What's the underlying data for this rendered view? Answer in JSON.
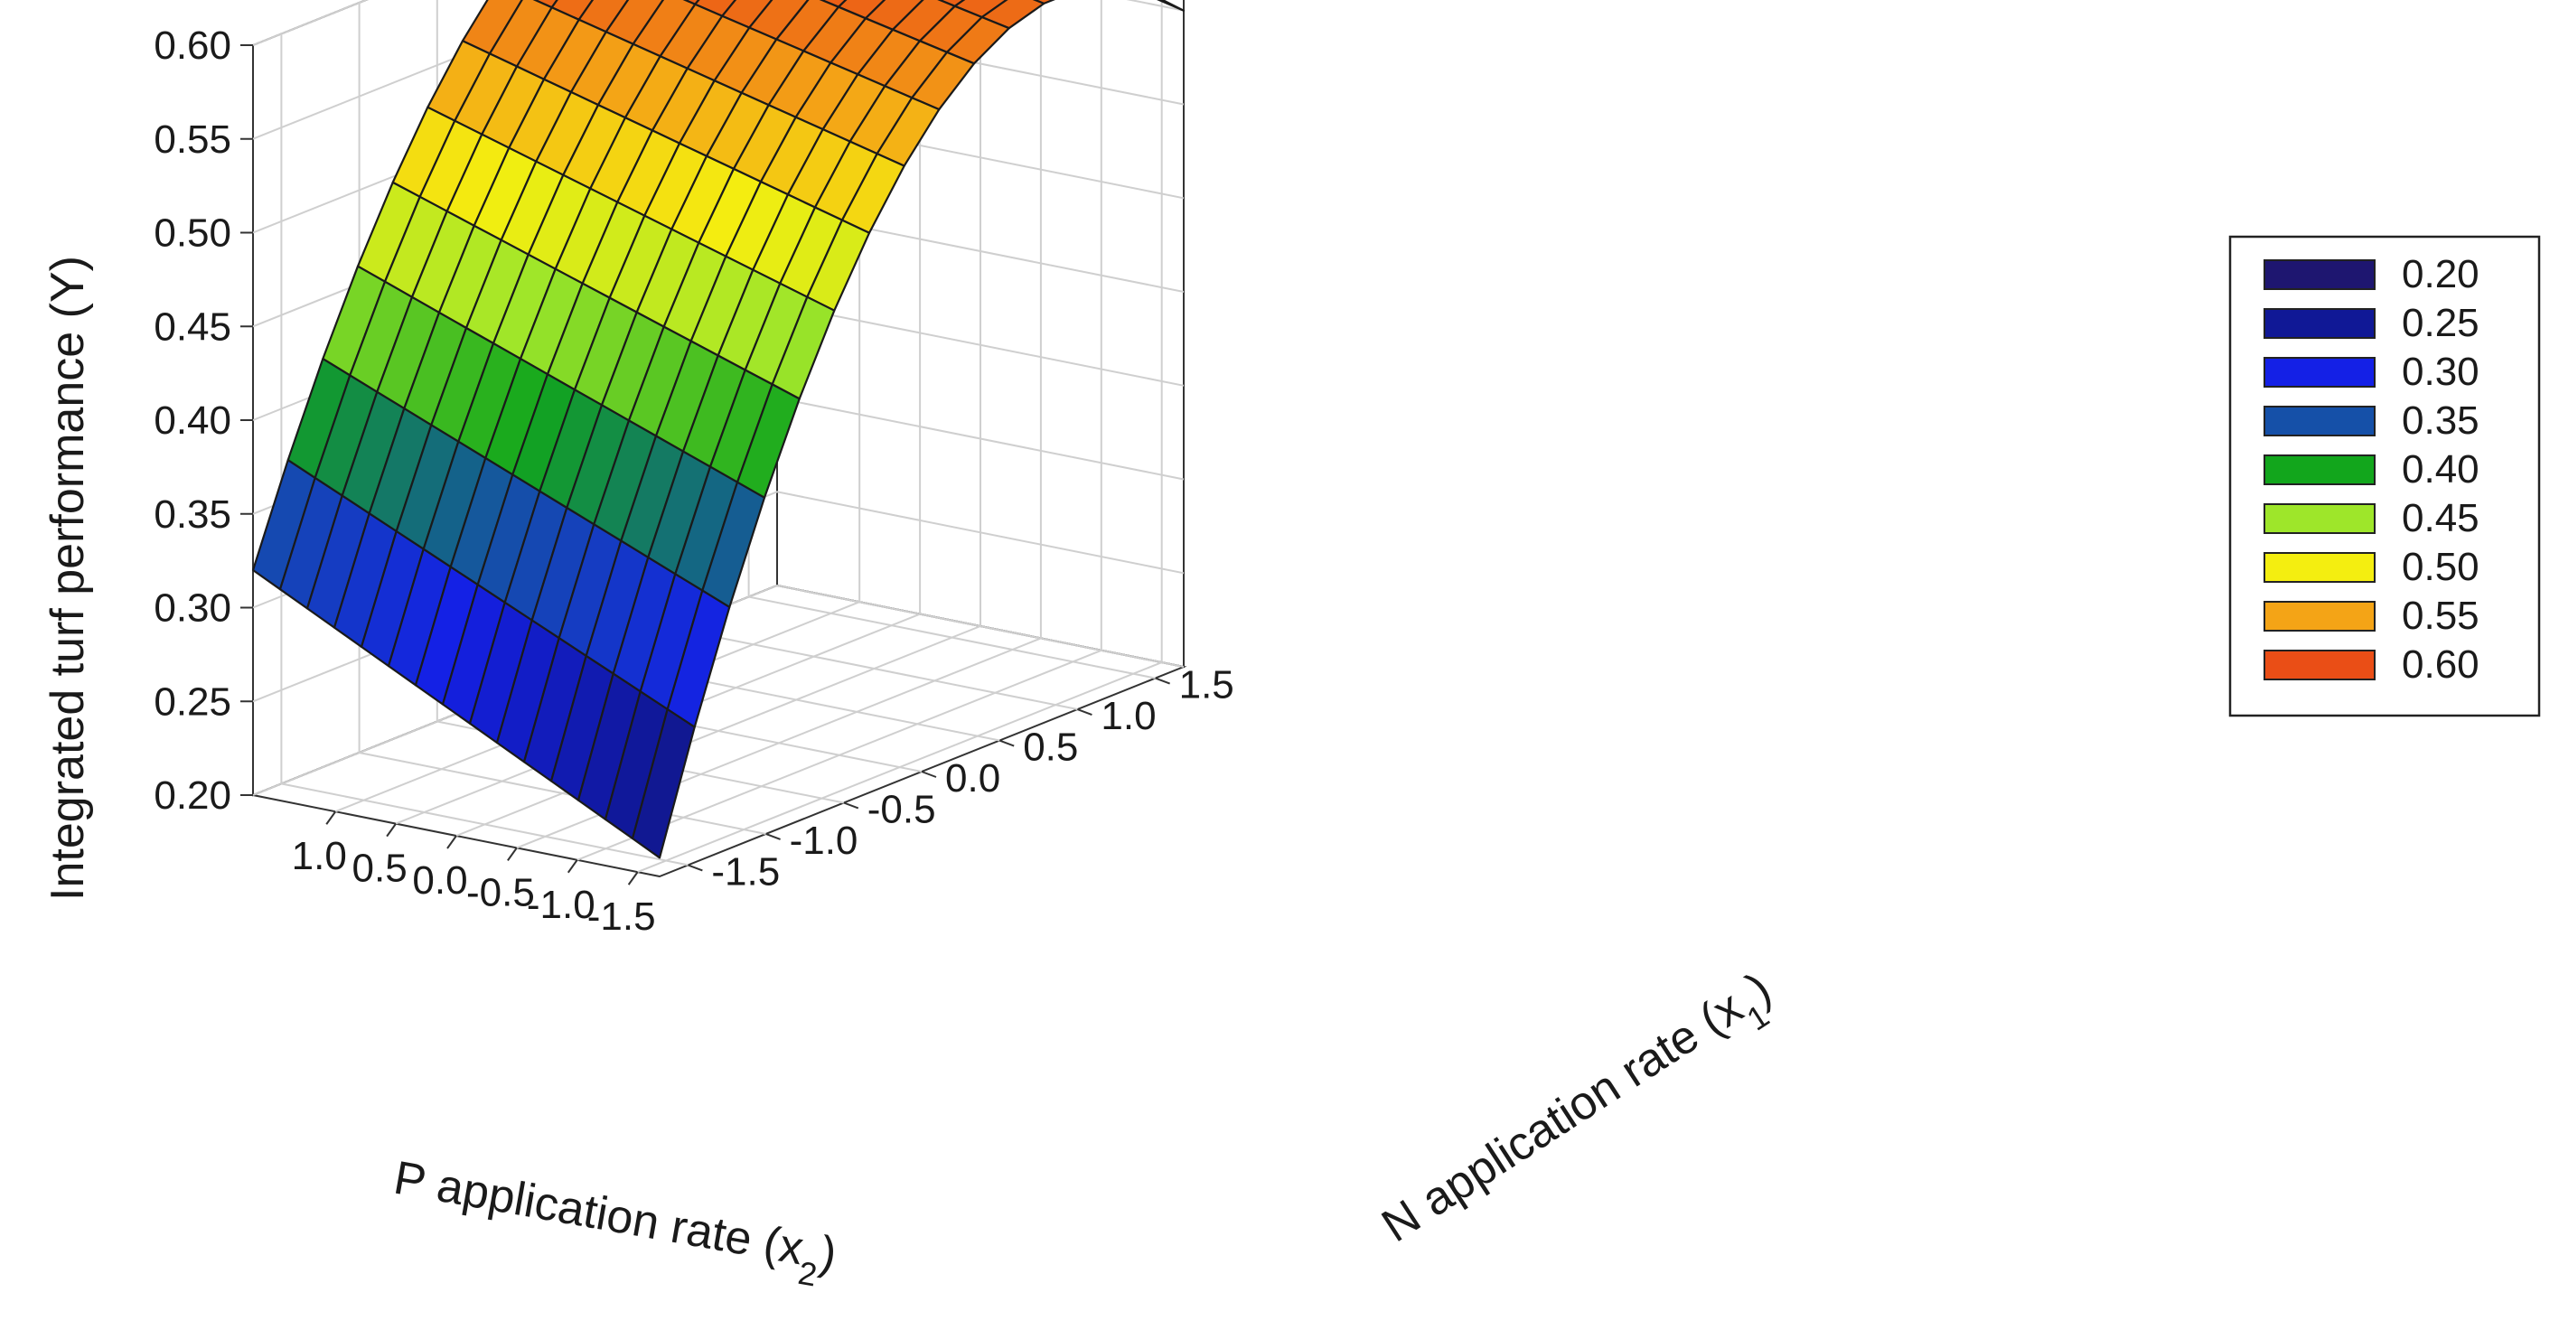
{
  "chart_data": {
    "type": "surface",
    "zlabel": "Integrated turf performance (Y)",
    "xlabel": {
      "main": "P application rate (x",
      "sub": "2",
      "end": ")"
    },
    "ylabel": {
      "main": "N application rate (x",
      "sub": "1",
      "end": ")"
    },
    "z_ticks": [
      "0.20",
      "0.25",
      "0.30",
      "0.35",
      "0.40",
      "0.45",
      "0.50",
      "0.55",
      "0.60"
    ],
    "p_ticks": [
      "1.0",
      "0.5",
      "0.0",
      "-0.5",
      "-1.0",
      "-1.5"
    ],
    "n_ticks": [
      "-1.5",
      "-1.0",
      "-0.5",
      "0.0",
      "0.5",
      "1.0",
      "1.5"
    ],
    "zlim": [
      0.2,
      0.6
    ],
    "p_range": [
      -1.682,
      1.682
    ],
    "n_range": [
      -1.682,
      1.682
    ],
    "grid": true,
    "legend_position": "right",
    "surface": {
      "grid_steps": 15,
      "corners": {
        "p_max_n_min": 0.32,
        "p_min_n_min": 0.21,
        "p_max_n_max": 0.6,
        "p_min_n_max": 0.55
      },
      "peak_n": 0.9
    },
    "legend": [
      {
        "label": "0.20",
        "color": "#1e1670"
      },
      {
        "label": "0.25",
        "color": "#101896"
      },
      {
        "label": "0.30",
        "color": "#1420e6"
      },
      {
        "label": "0.35",
        "color": "#1550a8"
      },
      {
        "label": "0.40",
        "color": "#12a61c"
      },
      {
        "label": "0.45",
        "color": "#9ee62a"
      },
      {
        "label": "0.50",
        "color": "#f4ee10"
      },
      {
        "label": "0.55",
        "color": "#f4a416"
      },
      {
        "label": "0.60",
        "color": "#ea4e16"
      }
    ]
  }
}
